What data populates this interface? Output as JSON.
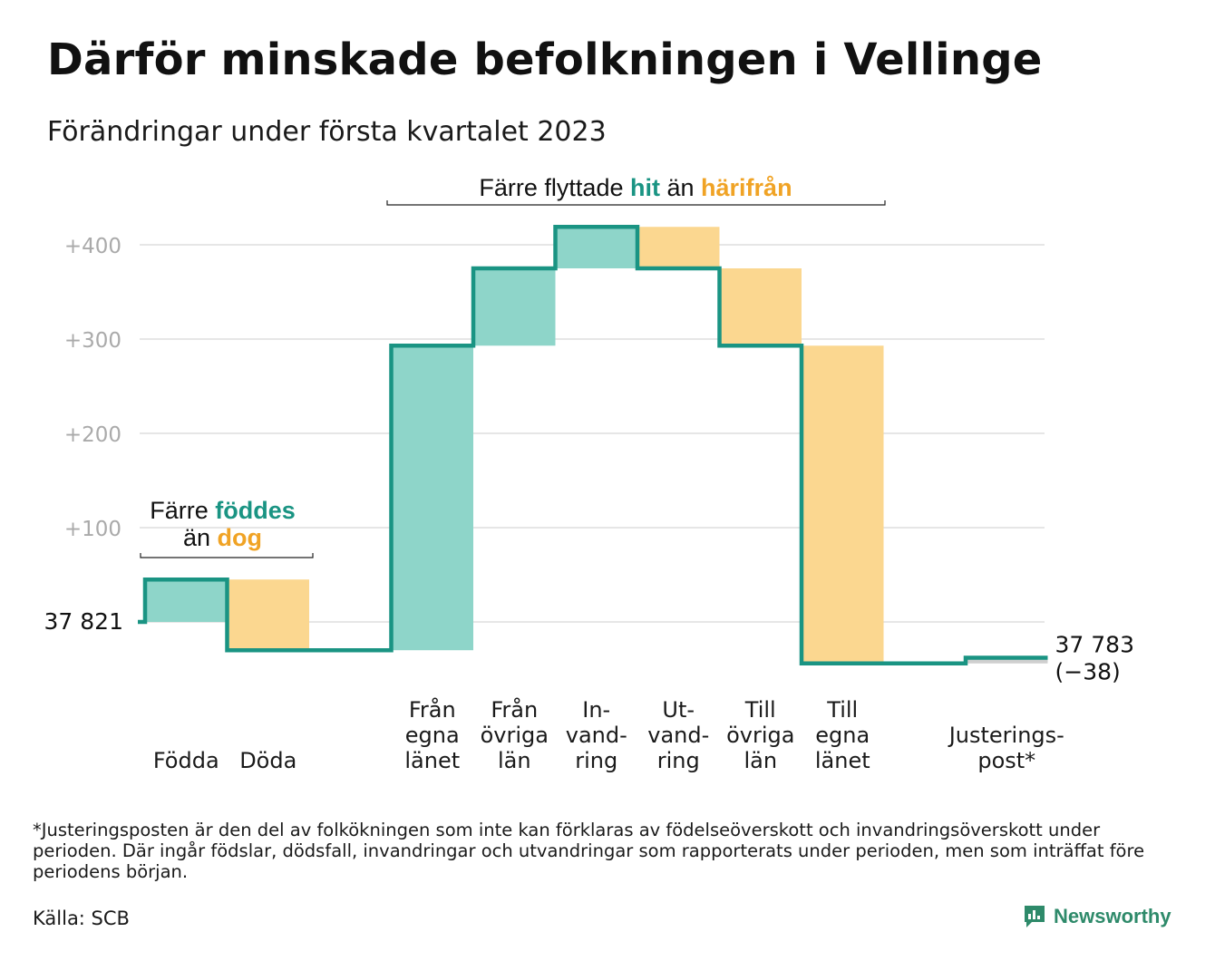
{
  "title": "Därför minskade befolkningen i Vellinge",
  "subtitle": "Förändringar under första kvartalet 2023",
  "colors": {
    "teal": "#1a9483",
    "teal_fill": "#8ed5c9",
    "orange": "#f0a325",
    "orange_fill": "#fbd790",
    "grid": "#e6e6e6",
    "tick": "#aaaaaa",
    "adjust_fill": "#cfcfcf"
  },
  "chart_data": {
    "type": "waterfall",
    "start_value": 37821,
    "start_label": "37 821",
    "end_label": "37 783",
    "end_change_label": "(−38)",
    "yticks": [
      {
        "value": 100,
        "label": "+100"
      },
      {
        "value": 200,
        "label": "+200"
      },
      {
        "value": 300,
        "label": "+300"
      },
      {
        "value": 400,
        "label": "+400"
      }
    ],
    "ylim": [
      -60,
      425
    ],
    "steps": [
      {
        "name": "Födda",
        "label_lines": [
          "",
          "",
          "Födda"
        ],
        "change": 45,
        "kind": "in"
      },
      {
        "name": "Döda",
        "label_lines": [
          "",
          "",
          "Döda"
        ],
        "change": -75,
        "kind": "out"
      },
      {
        "name": "gap",
        "label_lines": [],
        "change": 0,
        "kind": "none"
      },
      {
        "name": "Från egna länet",
        "label_lines": [
          "Från",
          "egna",
          "länet"
        ],
        "change": 323,
        "kind": "in"
      },
      {
        "name": "Från övriga län",
        "label_lines": [
          "Från",
          "övriga",
          "län"
        ],
        "change": 82,
        "kind": "in"
      },
      {
        "name": "Invandring",
        "label_lines": [
          "In-",
          "vand-",
          "ring"
        ],
        "change": 44,
        "kind": "in"
      },
      {
        "name": "Utvandring",
        "label_lines": [
          "Ut-",
          "vand-",
          "ring"
        ],
        "change": -44,
        "kind": "out"
      },
      {
        "name": "Till övriga län",
        "label_lines": [
          "Till",
          "övriga",
          "län"
        ],
        "change": -82,
        "kind": "out"
      },
      {
        "name": "Till egna länet",
        "label_lines": [
          "Till",
          "egna",
          "länet"
        ],
        "change": -337,
        "kind": "out"
      },
      {
        "name": "gap",
        "label_lines": [],
        "change": 0,
        "kind": "none"
      },
      {
        "name": "Justeringspost*",
        "label_lines": [
          "",
          "Justerings-",
          "post*"
        ],
        "change": 6,
        "kind": "adjust"
      }
    ],
    "annotations": [
      {
        "text_parts": [
          {
            "text": "Färre ",
            "color": "dark"
          },
          {
            "text": "föddes",
            "color": "teal"
          }
        ],
        "text_parts2": [
          {
            "text": "än ",
            "color": "dark"
          },
          {
            "text": "dog",
            "color": "orange"
          }
        ]
      },
      {
        "text_parts": [
          {
            "text": "Färre flyttade ",
            "color": "dark"
          },
          {
            "text": "hit",
            "color": "teal"
          },
          {
            "text": " än ",
            "color": "dark"
          },
          {
            "text": "härifrån",
            "color": "orange"
          }
        ]
      }
    ]
  },
  "footnote": "*Justeringsposten är den del av folkökningen som inte kan förklaras av födelseöverskott och invandringsöverskott under perioden. Där ingår födslar, dödsfall, invandringar och utvandringar som rapporterats under perioden, men som inträffat före periodens början.",
  "source": "Källa: SCB",
  "brand": "Newsworthy"
}
